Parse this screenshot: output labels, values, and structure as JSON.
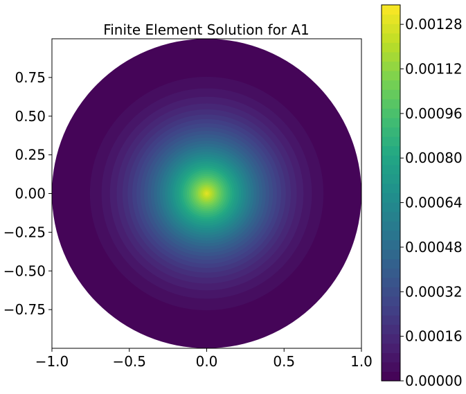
{
  "chart_data": {
    "type": "heatmap",
    "title": "Finite Element Solution for A1",
    "xlabel": "",
    "ylabel": "",
    "xlim": [
      -1.0,
      1.0
    ],
    "ylim": [
      -1.0,
      1.0
    ],
    "x_ticks": [
      -1.0,
      -0.5,
      0.0,
      0.5,
      1.0
    ],
    "x_tick_labels": [
      "−1.0",
      "−0.5",
      "0.0",
      "0.5",
      "1.0"
    ],
    "y_ticks": [
      0.75,
      0.5,
      0.25,
      0.0,
      -0.25,
      -0.5,
      -0.75
    ],
    "y_tick_labels": [
      "0.75",
      "0.50",
      "0.25",
      "0.00",
      "−0.25",
      "−0.50",
      "−0.75"
    ],
    "domain": "unit disk",
    "center_value": 0.0013,
    "boundary_value": 0.0,
    "field_shape": "radially symmetric, decreasing from center to boundary",
    "grid": false,
    "colorbar": {
      "colormap": "viridis",
      "min": 0.0,
      "max": 0.00135,
      "levels": 40,
      "ticks": [
        0.0,
        0.00016,
        0.00032,
        0.00048,
        0.00064,
        0.0008,
        0.00096,
        0.00112,
        0.00128
      ],
      "tick_labels": [
        "0.00000",
        "0.00016",
        "0.00032",
        "0.00048",
        "0.00064",
        "0.00080",
        "0.00096",
        "0.00112",
        "0.00128"
      ],
      "placement": "right"
    }
  }
}
